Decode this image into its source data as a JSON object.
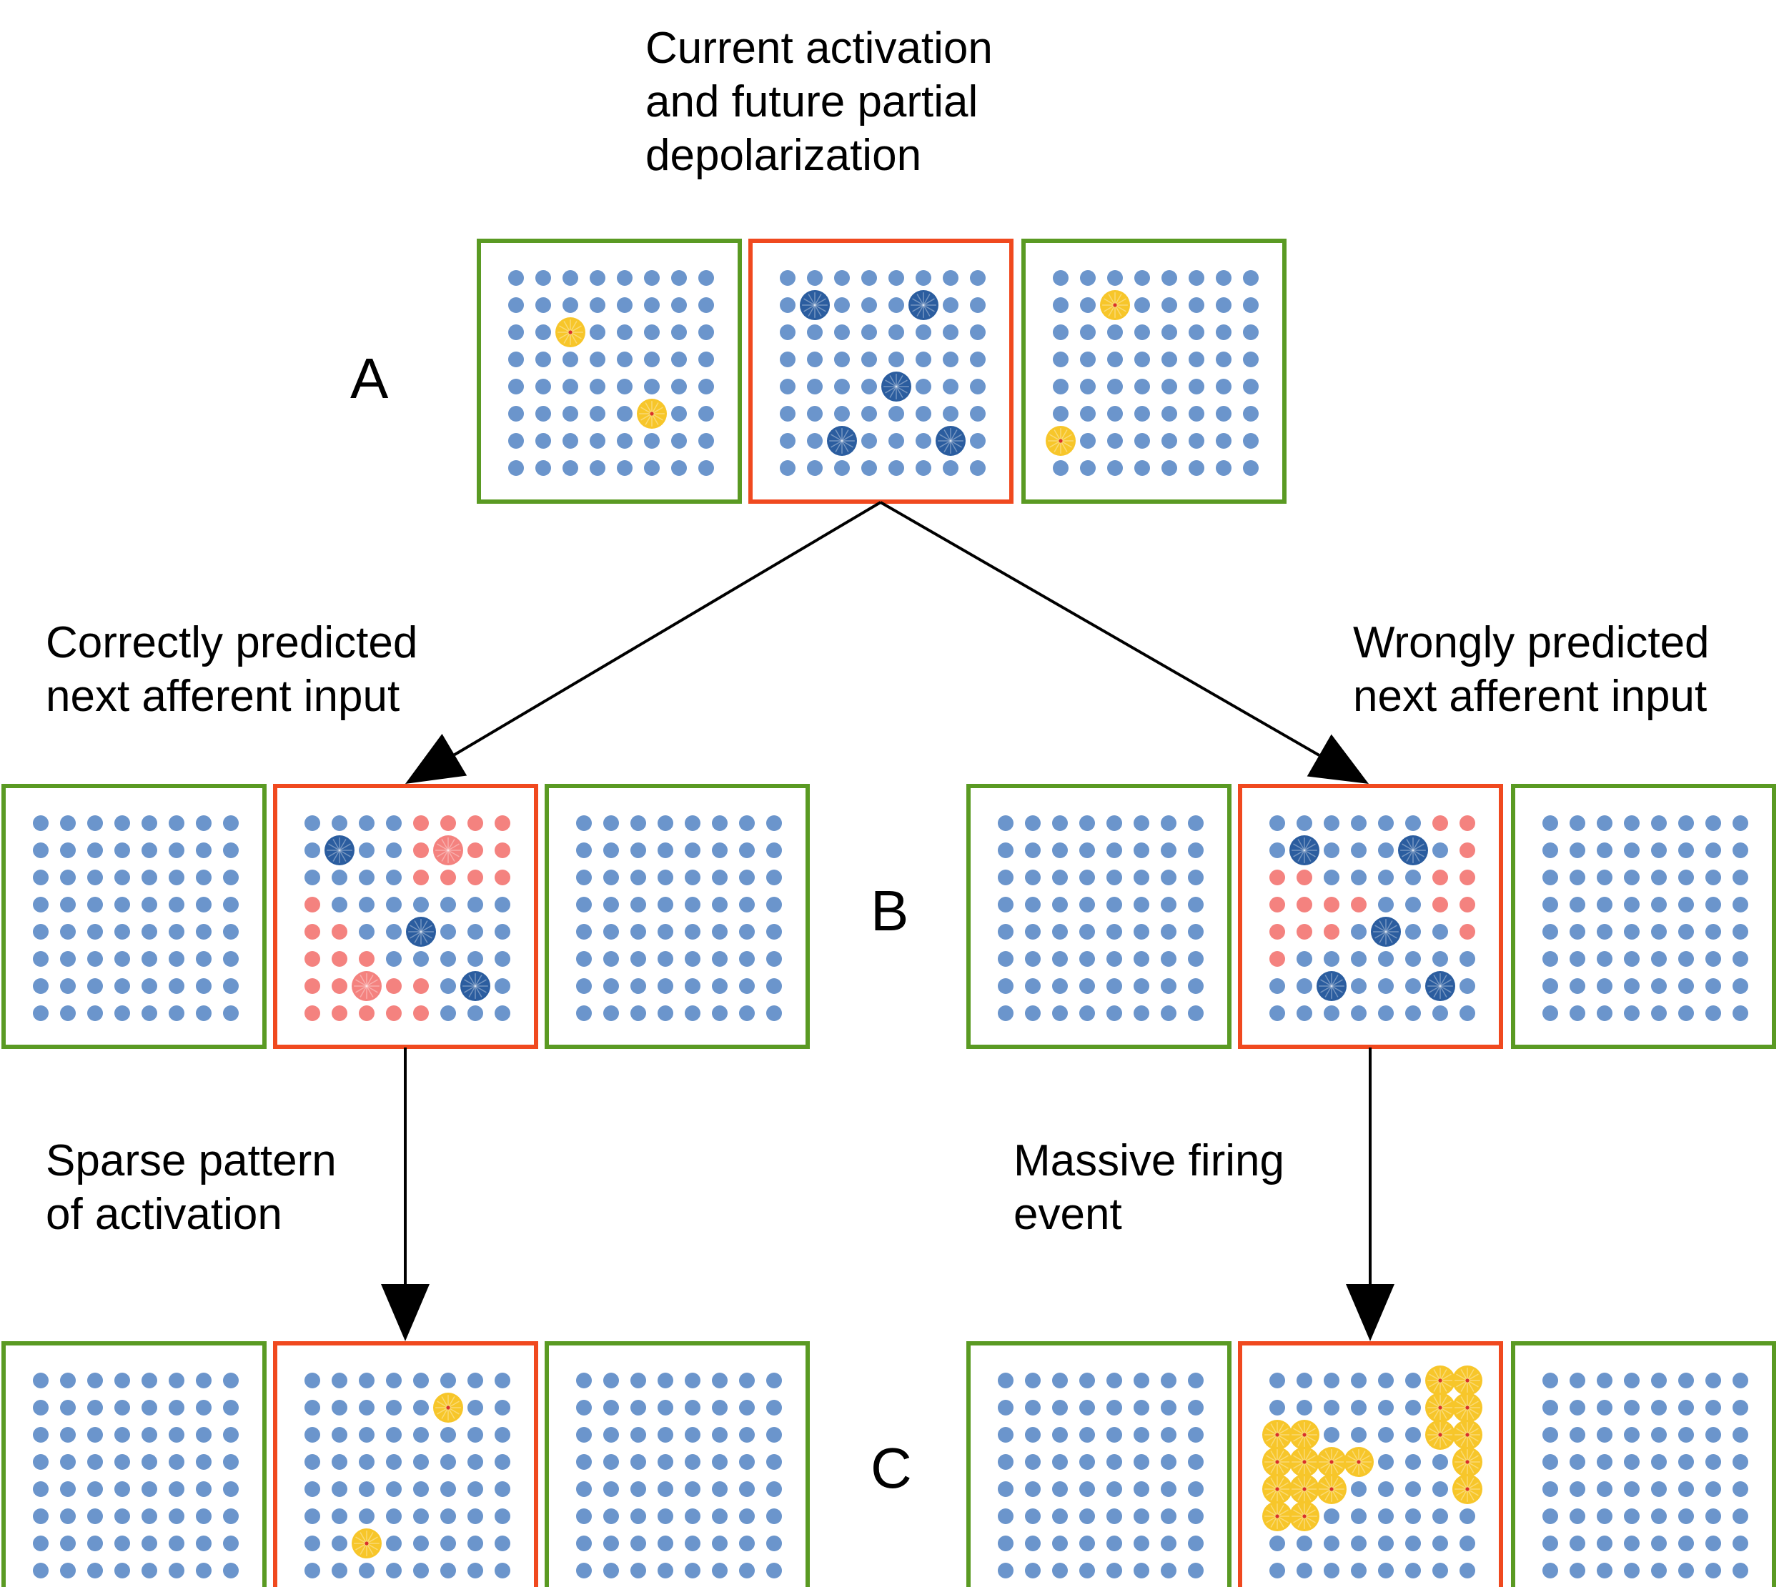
{
  "captions": {
    "top": "Current activation\nand future partial\ndepolarization",
    "correct": "Correctly predicted\nnext afferent input",
    "wrong": "Wrongly predicted\nnext afferent input",
    "sparse": "Sparse pattern\nof activation",
    "massive": "Massive firing\nevent"
  },
  "row_labels": {
    "a": "A",
    "b": "B",
    "c": "C"
  },
  "colors": {
    "column_border": "#5a9a23",
    "center_border": "#f0491f",
    "cell": "#6b95cc",
    "depolarized": "#2b5d9f",
    "active": "#f7c62a",
    "active_center": "#d9302a",
    "predicted": "#f4827f",
    "arrow": "#000000"
  },
  "grid": {
    "rows": 8,
    "cols": 8
  },
  "panels": [
    {
      "id": "a-left",
      "frame": "column",
      "markers": [
        [
          "active",
          2,
          2
        ],
        [
          "active",
          5,
          5
        ]
      ]
    },
    {
      "id": "a-center",
      "frame": "center",
      "markers": [
        [
          "depolarized",
          1,
          1
        ],
        [
          "depolarized",
          1,
          5
        ],
        [
          "depolarized",
          4,
          4
        ],
        [
          "depolarized",
          6,
          2
        ],
        [
          "depolarized",
          6,
          6
        ]
      ]
    },
    {
      "id": "a-right",
      "frame": "column",
      "markers": [
        [
          "active",
          1,
          2
        ],
        [
          "active",
          6,
          0
        ]
      ]
    },
    {
      "id": "b-left-1",
      "frame": "column",
      "markers": []
    },
    {
      "id": "b-left-center",
      "frame": "center",
      "markers": [
        [
          "predicted",
          0,
          4
        ],
        [
          "predicted",
          0,
          5
        ],
        [
          "predicted",
          0,
          6
        ],
        [
          "predicted",
          0,
          7
        ],
        [
          "predicted",
          1,
          4
        ],
        [
          "predicted",
          1,
          6
        ],
        [
          "predicted",
          1,
          7
        ],
        [
          "predicted",
          2,
          4
        ],
        [
          "predicted",
          2,
          5
        ],
        [
          "predicted",
          2,
          6
        ],
        [
          "predicted",
          2,
          7
        ],
        [
          "predicted",
          3,
          0
        ],
        [
          "predicted",
          4,
          0
        ],
        [
          "predicted",
          4,
          1
        ],
        [
          "predicted",
          5,
          0
        ],
        [
          "predicted",
          5,
          1
        ],
        [
          "predicted",
          5,
          2
        ],
        [
          "predicted",
          6,
          0
        ],
        [
          "predicted",
          6,
          1
        ],
        [
          "predicted",
          6,
          3
        ],
        [
          "predicted",
          6,
          4
        ],
        [
          "predicted",
          7,
          0
        ],
        [
          "predicted",
          7,
          1
        ],
        [
          "predicted",
          7,
          2
        ],
        [
          "predicted",
          7,
          3
        ],
        [
          "predicted",
          7,
          4
        ],
        [
          "predicted-big",
          1,
          5
        ],
        [
          "predicted-big",
          6,
          2
        ],
        [
          "depolarized",
          1,
          1
        ],
        [
          "depolarized",
          4,
          4
        ],
        [
          "depolarized",
          6,
          6
        ]
      ]
    },
    {
      "id": "b-left-3",
      "frame": "column",
      "markers": []
    },
    {
      "id": "b-right-1",
      "frame": "column",
      "markers": []
    },
    {
      "id": "b-right-center",
      "frame": "center",
      "markers": [
        [
          "predicted",
          0,
          6
        ],
        [
          "predicted",
          0,
          7
        ],
        [
          "predicted",
          1,
          7
        ],
        [
          "predicted",
          2,
          0
        ],
        [
          "predicted",
          2,
          1
        ],
        [
          "predicted",
          2,
          6
        ],
        [
          "predicted",
          2,
          7
        ],
        [
          "predicted",
          3,
          0
        ],
        [
          "predicted",
          3,
          1
        ],
        [
          "predicted",
          3,
          2
        ],
        [
          "predicted",
          3,
          3
        ],
        [
          "predicted",
          3,
          6
        ],
        [
          "predicted",
          3,
          7
        ],
        [
          "predicted",
          4,
          0
        ],
        [
          "predicted",
          4,
          1
        ],
        [
          "predicted",
          4,
          2
        ],
        [
          "predicted",
          4,
          7
        ],
        [
          "predicted",
          5,
          0
        ],
        [
          "depolarized",
          1,
          1
        ],
        [
          "depolarized",
          1,
          5
        ],
        [
          "depolarized",
          4,
          4
        ],
        [
          "depolarized",
          6,
          2
        ],
        [
          "depolarized",
          6,
          6
        ]
      ]
    },
    {
      "id": "b-right-3",
      "frame": "column",
      "markers": []
    },
    {
      "id": "c-left-1",
      "frame": "column",
      "markers": []
    },
    {
      "id": "c-left-center",
      "frame": "center",
      "markers": [
        [
          "active",
          1,
          5
        ],
        [
          "active",
          6,
          2
        ]
      ]
    },
    {
      "id": "c-left-3",
      "frame": "column",
      "markers": []
    },
    {
      "id": "c-right-1",
      "frame": "column",
      "markers": []
    },
    {
      "id": "c-right-center",
      "frame": "center",
      "markers": [
        [
          "active",
          0,
          6
        ],
        [
          "active",
          0,
          7
        ],
        [
          "active",
          1,
          6
        ],
        [
          "active",
          1,
          7
        ],
        [
          "active",
          2,
          6
        ],
        [
          "active",
          2,
          7
        ],
        [
          "active",
          3,
          7
        ],
        [
          "active",
          4,
          7
        ],
        [
          "active",
          2,
          0
        ],
        [
          "active",
          2,
          1
        ],
        [
          "active",
          3,
          0
        ],
        [
          "active",
          3,
          1
        ],
        [
          "active",
          3,
          2
        ],
        [
          "active",
          3,
          3
        ],
        [
          "active",
          4,
          0
        ],
        [
          "active",
          4,
          1
        ],
        [
          "active",
          4,
          2
        ],
        [
          "active",
          5,
          0
        ],
        [
          "active",
          5,
          1
        ]
      ]
    },
    {
      "id": "c-right-3",
      "frame": "column",
      "markers": []
    }
  ]
}
